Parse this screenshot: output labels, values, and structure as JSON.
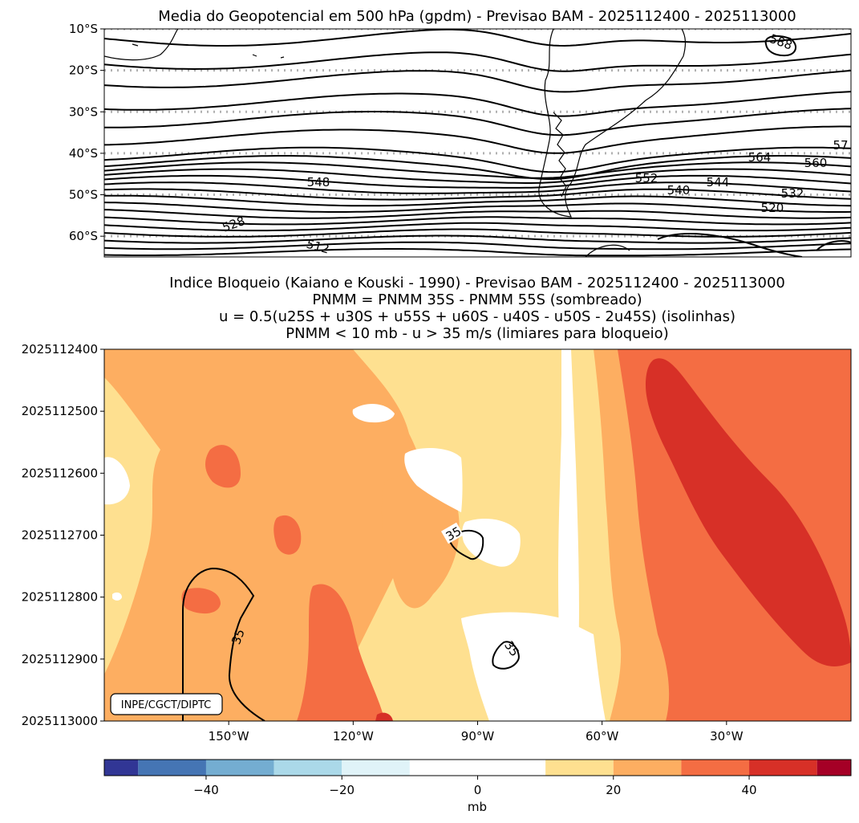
{
  "chart_data": [
    {
      "type": "map-contour",
      "title": "Media do Geopotencial em 500 hPa (gpdm) - Previsao BAM - 2025112400 - 2025113000",
      "ytick_labels": [
        "10°S",
        "20°S",
        "30°S",
        "40°S",
        "50°S",
        "60°S"
      ],
      "lat_values": [
        -10,
        -20,
        -30,
        -40,
        -50,
        -60
      ],
      "lat_range": [
        -65,
        -10
      ],
      "lon_range": [
        -180,
        0
      ],
      "gridlines": "dotted latitude lines",
      "contour_labels": [
        "588",
        "57",
        "564",
        "560",
        "552",
        "548",
        "544",
        "540",
        "532",
        "528",
        "520",
        "512"
      ],
      "contour_interval_gpdm": 4
    },
    {
      "type": "heatmap",
      "title_lines": [
        "Indice Bloqueio (Kaiano e Kouski - 1990) - Previsao BAM - 2025112400 - 2025113000",
        "PNMM = PNMM 35S - PNMM 55S (sombreado)",
        "u = 0.5(u25S + u30S + u55S + u60S - u40S - u50S - 2u45S) (isolinhas)",
        "PNMM < 10 mb - u > 35 m/s (limiares para bloqueio)"
      ],
      "ytick_labels": [
        "2025112400",
        "2025112500",
        "2025112600",
        "2025112700",
        "2025112800",
        "2025112900",
        "2025113000"
      ],
      "xtick_labels": [
        "150°W",
        "120°W",
        "90°W",
        "60°W",
        "30°W"
      ],
      "xtick_values": [
        -150,
        -120,
        -90,
        -60,
        -30
      ],
      "x_range": [
        -180,
        0
      ],
      "contour_labels": [
        "35",
        "35",
        "35"
      ],
      "contour_level_ms": 35,
      "credit": "INPE/CGCT/DIPTC",
      "colorbar": {
        "label": "mb",
        "ticks": [
          -40,
          -20,
          0,
          20,
          40
        ],
        "tick_labels": [
          "−40",
          "−20",
          "0",
          "20",
          "40"
        ],
        "range": [
          -55,
          55
        ],
        "levels": [
          -55,
          -50,
          -40,
          -30,
          -20,
          -10,
          10,
          20,
          30,
          40,
          50,
          55
        ],
        "colors": [
          "#313695",
          "#4575b4",
          "#74add1",
          "#abd9e9",
          "#e0f3f8",
          "#ffffff",
          "#fee090",
          "#fdae61",
          "#f46d43",
          "#d73027",
          "#a50026"
        ]
      }
    }
  ]
}
